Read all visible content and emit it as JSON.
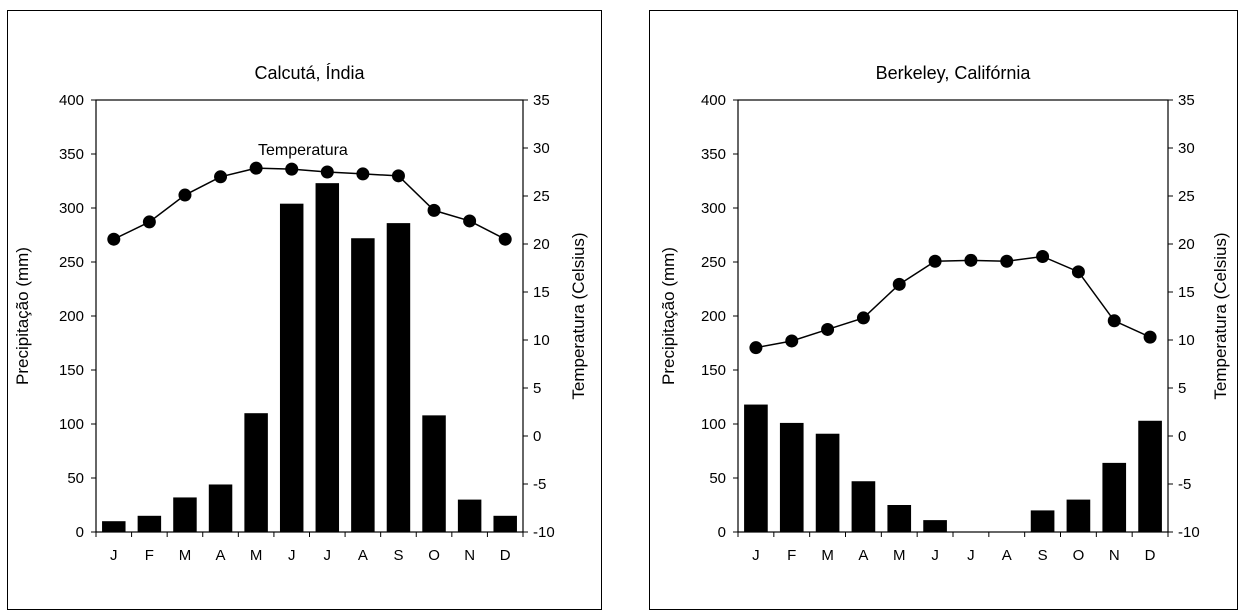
{
  "chart_data": [
    {
      "type": "bar+line",
      "title": "Calcutá, Índia",
      "ylabel_left": "Precipitação (mm)",
      "ylabel_right": "Temperatura (Celsius)",
      "annotation": "Temperatura",
      "categories": [
        "J",
        "F",
        "M",
        "A",
        "M",
        "J",
        "J",
        "A",
        "S",
        "O",
        "N",
        "D"
      ],
      "y_left_lim": [
        0,
        400
      ],
      "y_left_ticks": [
        0,
        50,
        100,
        150,
        200,
        250,
        300,
        350,
        400
      ],
      "y_right_lim": [
        -10,
        35
      ],
      "y_right_ticks": [
        -10,
        -5,
        0,
        5,
        10,
        15,
        20,
        25,
        30,
        35
      ],
      "precipitation": [
        10,
        15,
        32,
        44,
        110,
        304,
        323,
        272,
        286,
        108,
        30,
        15
      ],
      "temperature": [
        20.5,
        22.3,
        25.1,
        27.0,
        27.9,
        27.8,
        27.5,
        27.3,
        27.1,
        23.5,
        22.4,
        20.5
      ],
      "grid": false,
      "colors": {
        "bars": "#000000",
        "line": "#000000",
        "markers": "#000000"
      }
    },
    {
      "type": "bar+line",
      "title": "Berkeley, Califórnia",
      "ylabel_left": "Precipitação (mm)",
      "ylabel_right": "Temperatura (Celsius)",
      "annotation": "",
      "categories": [
        "J",
        "F",
        "M",
        "A",
        "M",
        "J",
        "J",
        "A",
        "S",
        "O",
        "N",
        "D"
      ],
      "y_left_lim": [
        0,
        400
      ],
      "y_left_ticks": [
        0,
        50,
        100,
        150,
        200,
        250,
        300,
        350,
        400
      ],
      "y_right_lim": [
        -10,
        35
      ],
      "y_right_ticks": [
        -10,
        -5,
        0,
        5,
        10,
        15,
        20,
        25,
        30,
        35
      ],
      "precipitation": [
        118,
        101,
        91,
        47,
        25,
        11,
        0,
        0,
        20,
        30,
        64,
        103
      ],
      "temperature": [
        9.2,
        9.9,
        11.1,
        12.3,
        15.8,
        18.2,
        18.3,
        18.2,
        18.7,
        17.1,
        12.0,
        10.3
      ],
      "grid": false,
      "colors": {
        "bars": "#000000",
        "line": "#000000",
        "markers": "#000000"
      }
    }
  ]
}
